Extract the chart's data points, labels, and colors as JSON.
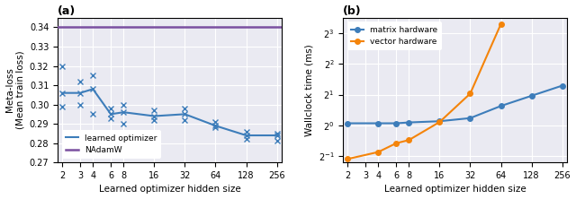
{
  "panel_a": {
    "title": "(a)",
    "xlabel": "Learned optimizer hidden size",
    "ylabel": "Meta-loss\n(Mean train loss)",
    "x_vals": [
      2,
      3,
      4,
      6,
      8,
      16,
      32,
      64,
      128,
      256
    ],
    "learned_opt_mean": [
      0.306,
      0.306,
      0.308,
      0.295,
      0.296,
      0.294,
      0.295,
      0.289,
      0.284,
      0.284
    ],
    "nadamw_val": 0.34,
    "ylim": [
      0.27,
      0.345
    ],
    "yticks": [
      0.27,
      0.28,
      0.29,
      0.3,
      0.31,
      0.32,
      0.33,
      0.34
    ],
    "blue": "#3d7dba",
    "purple": "#7b50a0",
    "bg_color": "#eaeaf2",
    "scatter_x_markers": {
      "2": [
        0.306,
        0.32,
        0.299
      ],
      "3": [
        0.306,
        0.312,
        0.3
      ],
      "4": [
        0.308,
        0.315,
        0.295
      ],
      "6": [
        0.295,
        0.298,
        0.293
      ],
      "8": [
        0.296,
        0.3,
        0.29
      ],
      "16": [
        0.294,
        0.297,
        0.292
      ],
      "32": [
        0.295,
        0.298,
        0.292
      ],
      "64": [
        0.289,
        0.291,
        0.288
      ],
      "128": [
        0.284,
        0.286,
        0.282
      ],
      "256": [
        0.284,
        0.285,
        0.281
      ]
    }
  },
  "panel_b": {
    "title": "(b)",
    "xlabel": "Learned optimizer hidden size",
    "ylabel": "Wallclock time (ms)",
    "x_all": [
      2,
      3,
      4,
      6,
      8,
      16,
      32,
      64,
      128,
      256
    ],
    "matrix_x": [
      2,
      4,
      6,
      8,
      16,
      32,
      64,
      128,
      256
    ],
    "matrix_hw": [
      1.05,
      1.05,
      1.05,
      1.07,
      1.1,
      1.18,
      1.55,
      1.95,
      2.45
    ],
    "vector_x": [
      2,
      4,
      6,
      8,
      16,
      32,
      64
    ],
    "vector_hw": [
      0.47,
      0.55,
      0.67,
      0.72,
      1.08,
      2.05,
      9.8
    ],
    "matrix_color": "#3d7dba",
    "vector_color": "#f4840a",
    "bg_color": "#eaeaf2",
    "ylim_log2": [
      -1.2,
      3.5
    ],
    "yticks_log2": [
      -1,
      0,
      1,
      2,
      3
    ]
  }
}
